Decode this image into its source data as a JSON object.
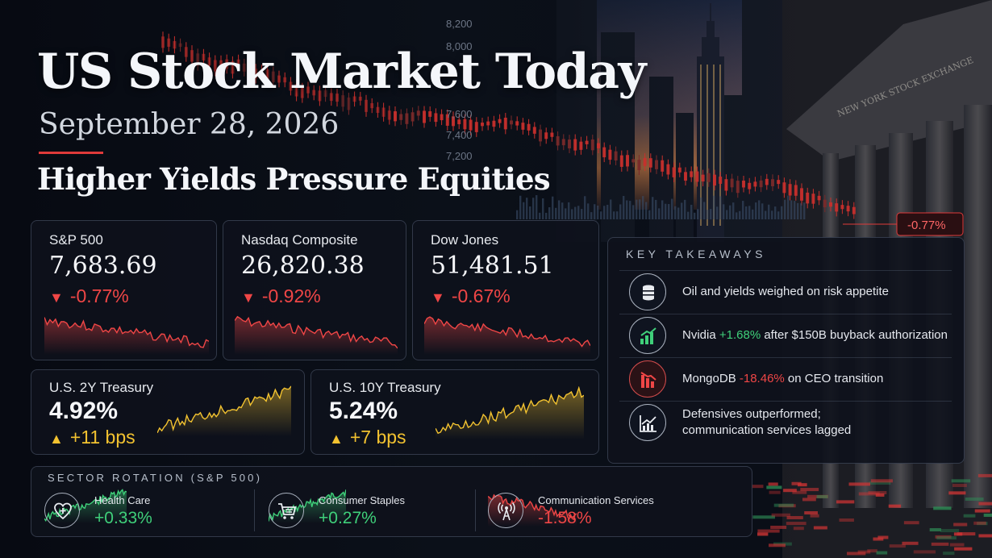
{
  "headline": "US Stock Market Today",
  "date": "September 28, 2026",
  "subhead": "Higher Yields Pressure Equities",
  "background": {
    "chart_badge": "-0.77%",
    "axis_labels": [
      "8,200",
      "8,000",
      "7,600",
      "7,400",
      "7,200"
    ],
    "building_inscription": "NEW YORK STOCK EXCHANGE"
  },
  "indices": [
    {
      "name": "S&P 500",
      "value": "7,683.69",
      "change": "-0.77%",
      "arrow": "▼"
    },
    {
      "name": "Nasdaq Composite",
      "value": "26,820.38",
      "change": "-0.92%",
      "arrow": "▼"
    },
    {
      "name": "Dow Jones",
      "value": "51,481.51",
      "change": "-0.67%",
      "arrow": "▼"
    }
  ],
  "treasuries": [
    {
      "name": "U.S. 2Y Treasury",
      "value": "4.92%",
      "change": "+11 bps",
      "arrow": "▲"
    },
    {
      "name": "U.S. 10Y Treasury",
      "value": "5.24%",
      "change": "+7 bps",
      "arrow": "▲"
    }
  ],
  "takeaways": {
    "title": "KEY TAKEAWAYS",
    "items": [
      {
        "icon": "oil-barrel-icon",
        "text": "Oil and yields weighed on risk appetite"
      },
      {
        "icon": "bar-chart-up-icon",
        "pre": "Nvidia ",
        "highlight": "+1.68%",
        "post": " after $150B buyback authorization",
        "tone": "positive"
      },
      {
        "icon": "bar-chart-down-icon",
        "pre": "MongoDB ",
        "highlight": "-18.46%",
        "post": " on CEO transition",
        "tone": "negative"
      },
      {
        "icon": "line-chart-icon",
        "line1": "Defensives outperformed;",
        "line2": "communication services lagged"
      }
    ]
  },
  "sectors": {
    "title": "SECTOR ROTATION (S&P 500)",
    "items": [
      {
        "icon": "heart-plus-icon",
        "name": "Health Care",
        "value": "+0.33%"
      },
      {
        "icon": "shopping-cart-icon",
        "name": "Consumer Staples",
        "value": "+0.27%"
      },
      {
        "icon": "broadcast-tower-icon",
        "name": "Communication Services",
        "value": "-1.58%"
      }
    ]
  },
  "colors": {
    "negative": "#ef4646",
    "positive_yield": "#f2c230",
    "positive_green": "#3fd07a",
    "accent_rule": "#e03a3a"
  }
}
